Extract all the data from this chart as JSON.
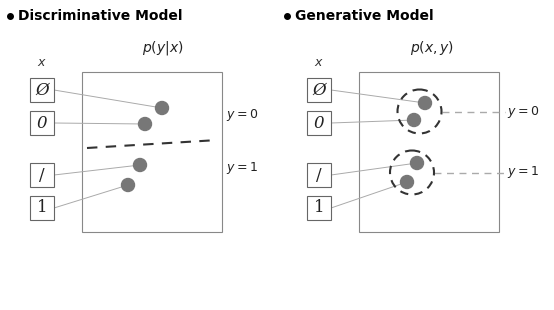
{
  "fig_width": 5.54,
  "fig_height": 3.1,
  "dpi": 100,
  "bg_color": "#ffffff",
  "title_disc": "Discriminative Model",
  "title_gen": "Generative Model",
  "formula_disc": "$p(y|x)$",
  "formula_gen": "$p(x, y)$",
  "dot_color": "#777777",
  "line_color": "#aaaaaa",
  "dashed_color": "#333333",
  "box_color": "#888888",
  "digits_left": [
    "Ø",
    "0",
    "/",
    "1"
  ],
  "digits_right": [
    "Ø",
    "0",
    "/",
    "1"
  ]
}
